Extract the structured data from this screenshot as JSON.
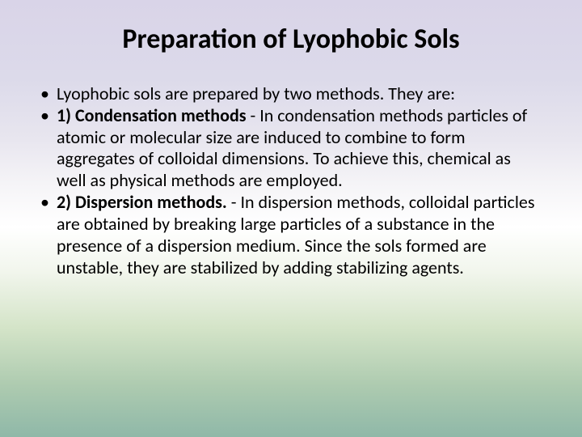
{
  "slide": {
    "title": "Preparation of Lyophobic Sols",
    "title_fontsize": 34,
    "title_color": "#000000",
    "body_fontsize": 22,
    "body_color": "#000000",
    "bullets": [
      {
        "full": "Lyophobic sols are prepared by two methods. They are:"
      },
      {
        "lead": "1) Condensation methods",
        "rest": " - In condensation methods particles of atomic or molecular size are induced to combine to form aggregates of colloidal dimensions. To achieve this, chemical as well as physical methods are employed."
      },
      {
        "lead": "2) Dispersion methods.",
        "rest": " - In dispersion methods, colloidal particles are obtained by breaking large particles of a substance in the presence of a dispersion medium. Since the sols formed are unstable, they are stabilized by adding stabilizing agents."
      }
    ],
    "background_gradient": [
      "#d9d4e8",
      "#ffffff",
      "#8fb8a8"
    ]
  }
}
